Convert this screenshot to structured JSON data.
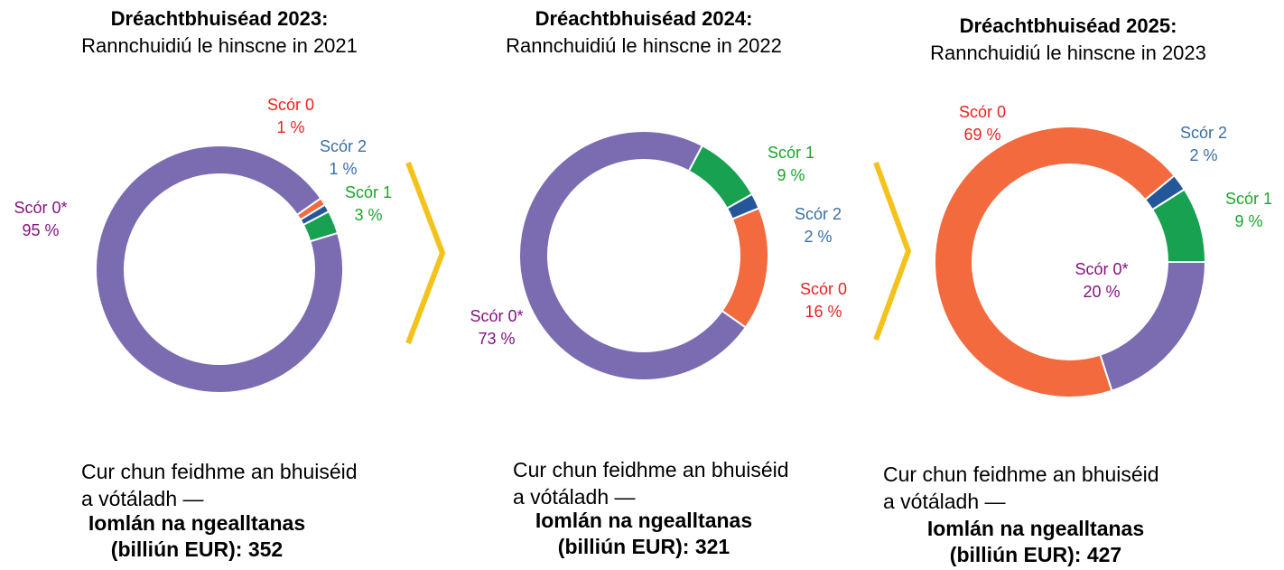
{
  "chart_data": [
    {
      "type": "pie",
      "donut": true,
      "title": "Dréachtbhuiséad 2023:",
      "subtitle": "Rannchuidiú le hinscne in 2021",
      "categories": [
        "Scór 0",
        "Scór 2",
        "Scór 1",
        "Scór 0*"
      ],
      "values": [
        1,
        1,
        3,
        95
      ],
      "value_labels": [
        "1 %",
        "1 %",
        "3 %",
        "95 %"
      ],
      "colors": [
        "#f26a3d",
        "#24579a",
        "#17a150",
        "#7b6cb2"
      ],
      "label_colors": [
        "#e8231e",
        "#3a6ea5",
        "#1aa52a",
        "#84127f"
      ],
      "footer": [
        "Cur chun feidhme an bhuiséid",
        "a vótáladh —"
      ],
      "footer_bold": [
        "Iomlán na ngealltanas",
        "(billiún EUR): 352"
      ]
    },
    {
      "type": "pie",
      "donut": true,
      "title": "Dréachtbhuiséad 2024:",
      "subtitle": "Rannchuidiú le hinscne in 2022",
      "categories": [
        "Scór 1",
        "Scór 2",
        "Scór 0",
        "Scór 0*"
      ],
      "values": [
        9,
        2,
        16,
        73
      ],
      "value_labels": [
        "9 %",
        "2 %",
        "16 %",
        "73 %"
      ],
      "colors": [
        "#17a150",
        "#24579a",
        "#f26a3d",
        "#7b6cb2"
      ],
      "label_colors": [
        "#1aa52a",
        "#3a6ea5",
        "#e8231e",
        "#84127f"
      ],
      "footer": [
        "Cur chun feidhme an bhuiséid",
        "a vótáladh —"
      ],
      "footer_bold": [
        "Iomlán na ngealltanas",
        "(billiún EUR): 321"
      ]
    },
    {
      "type": "pie",
      "donut": true,
      "title": "Dréachtbhuiséad 2025:",
      "subtitle": "Rannchuidiú le hinscne in 2023",
      "categories": [
        "Scór 0*",
        "Scór 0",
        "Scór 2",
        "Scór 1"
      ],
      "values": [
        20,
        69,
        2,
        9
      ],
      "value_labels": [
        "20 %",
        "69 %",
        "2 %",
        "9 %"
      ],
      "colors": [
        "#7b6cb2",
        "#f26a3d",
        "#24579a",
        "#17a150"
      ],
      "label_colors": [
        "#84127f",
        "#e8231e",
        "#3a6ea5",
        "#1aa52a"
      ],
      "footer": [
        "Cur chun feidhme an bhuiséid",
        "a vótáladh —"
      ],
      "footer_bold": [
        "Iomlán na ngealltanas",
        "(billiún EUR): 427"
      ]
    }
  ]
}
